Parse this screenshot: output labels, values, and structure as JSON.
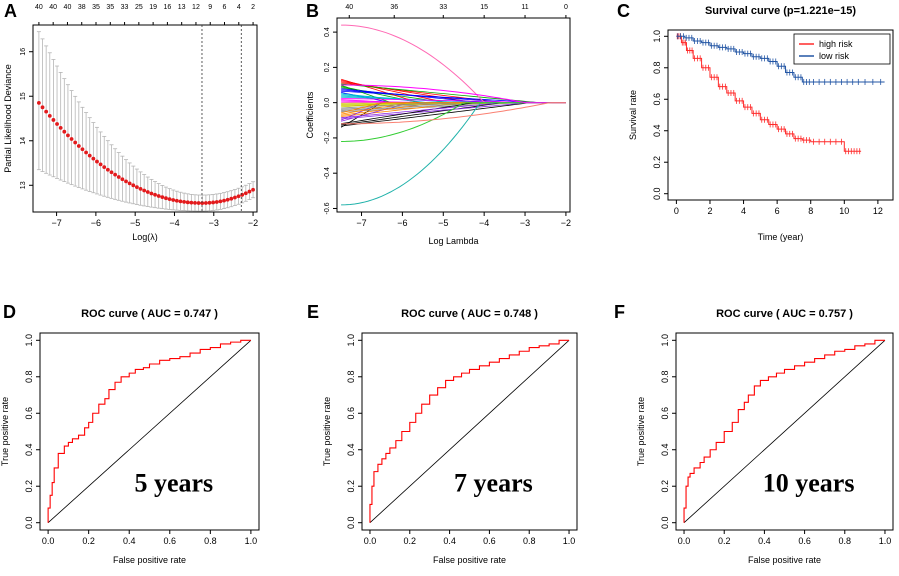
{
  "panels": {
    "A": {
      "label": "A"
    },
    "B": {
      "label": "B"
    },
    "C": {
      "label": "C"
    },
    "D": {
      "label": "D"
    },
    "E": {
      "label": "E"
    },
    "F": {
      "label": "F"
    }
  },
  "chart_data": [
    {
      "id": "A",
      "type": "scatter",
      "title": "",
      "xlabel": "Log(λ)",
      "ylabel": "Partial Likelihood Deviance",
      "xlim": [
        -7.6,
        -1.9
      ],
      "ylim": [
        12.4,
        16.6
      ],
      "x_ticks": [
        -7,
        -6,
        -5,
        -4,
        -3,
        -2
      ],
      "y_ticks": [
        13,
        14,
        15,
        16
      ],
      "top_tick_labels": [
        "40",
        "40",
        "40",
        "38",
        "35",
        "35",
        "33",
        "25",
        "19",
        "16",
        "13",
        "12",
        "9",
        "6",
        "4",
        "2"
      ],
      "vlines": [
        -3.3,
        -2.3
      ],
      "point_color": "#e31a1c",
      "curve": {
        "x_start": -7.45,
        "x_end": -2.0,
        "y_start": 14.85,
        "y_min": 12.6,
        "x_min": -3.3,
        "y_end": 12.9
      },
      "error_bar": {
        "upper_start": 16.45,
        "lower_start": 13.35,
        "upper_min": 12.78,
        "lower_min": 12.42
      }
    },
    {
      "id": "B",
      "type": "line",
      "title": "",
      "xlabel": "Log Lambda",
      "ylabel": "Coefficients",
      "xlim": [
        -7.6,
        -1.9
      ],
      "ylim": [
        -0.62,
        0.48
      ],
      "x_ticks": [
        -7,
        -6,
        -5,
        -4,
        -3,
        -2
      ],
      "y_ticks": [
        -0.6,
        -0.4,
        -0.2,
        0.0,
        0.2,
        0.4
      ],
      "y_tick_labels": [
        "-0.6",
        "-0.4",
        "-0.2",
        "0.0",
        "0.2",
        "0.4"
      ],
      "top_tick_labels": [
        "40",
        "36",
        "33",
        "15",
        "11",
        "0"
      ],
      "top_tick_positions": [
        -7.3,
        -6.2,
        -5.0,
        -4.0,
        -3.0,
        -2.0
      ],
      "series_count": 40,
      "highlighted_series": [
        {
          "name": "pink-high",
          "start": 0.44,
          "zero_at": -4.0,
          "color": "#ff69b4"
        },
        {
          "name": "cyan-low",
          "start": -0.58,
          "zero_at": -4.1,
          "color": "#20b2aa"
        },
        {
          "name": "green-mid",
          "start": -0.22,
          "zero_at": -4.5,
          "color": "#32cd32"
        },
        {
          "name": "magenta",
          "start": 0.1,
          "zero_at": -3.0,
          "color": "#ff00ff"
        },
        {
          "name": "salmon",
          "start": -0.12,
          "zero_at": -2.4,
          "color": "#fa8072"
        }
      ]
    },
    {
      "id": "C",
      "type": "line",
      "title": "Survival curve (p=1.221e−15)",
      "xlabel": "Time (year)",
      "ylabel": "Survival rate",
      "xlim": [
        -0.5,
        12.9
      ],
      "ylim": [
        -0.04,
        1.04
      ],
      "x_ticks": [
        0,
        2,
        4,
        6,
        8,
        10,
        12
      ],
      "y_ticks": [
        0.0,
        0.2,
        0.4,
        0.6,
        0.8,
        1.0
      ],
      "y_tick_labels": [
        "0.0",
        "0.2",
        "0.4",
        "0.6",
        "0.8",
        "1.0"
      ],
      "series": [
        {
          "name": "high risk",
          "color": "#ff2a2a",
          "x": [
            0,
            0.3,
            0.6,
            1.0,
            1.5,
            2.0,
            2.5,
            3.0,
            3.5,
            4.0,
            4.5,
            5.0,
            5.5,
            6.0,
            6.5,
            7.0,
            7.5,
            8.0,
            9.0,
            10.0,
            10.5,
            11.0
          ],
          "y": [
            1.0,
            0.96,
            0.91,
            0.86,
            0.8,
            0.74,
            0.68,
            0.64,
            0.59,
            0.55,
            0.51,
            0.47,
            0.44,
            0.41,
            0.38,
            0.35,
            0.34,
            0.33,
            0.33,
            0.27,
            0.27,
            0.27
          ]
        },
        {
          "name": "low risk",
          "color": "#2255a4",
          "x": [
            0,
            0.5,
            1.0,
            1.5,
            2.0,
            2.5,
            3.0,
            3.5,
            4.0,
            4.5,
            5.0,
            5.5,
            6.0,
            6.5,
            7.0,
            7.5,
            8.0,
            9.0,
            10.0,
            11.0,
            12.4
          ],
          "y": [
            1.0,
            0.99,
            0.97,
            0.96,
            0.94,
            0.93,
            0.92,
            0.9,
            0.89,
            0.87,
            0.86,
            0.84,
            0.81,
            0.77,
            0.74,
            0.71,
            0.71,
            0.71,
            0.71,
            0.71,
            0.71
          ]
        }
      ],
      "legend": "top-right"
    },
    {
      "id": "D",
      "type": "line",
      "title": "ROC curve ( AUC =  0.747 )",
      "xlabel": "False positive rate",
      "ylabel": "True positive rate",
      "annotation": "5 years",
      "xlim": [
        -0.04,
        1.04
      ],
      "ylim": [
        -0.04,
        1.04
      ],
      "x_ticks": [
        0.0,
        0.2,
        0.4,
        0.6,
        0.8,
        1.0
      ],
      "y_ticks": [
        0.0,
        0.2,
        0.4,
        0.6,
        0.8,
        1.0
      ],
      "tick_labels": [
        "0.0",
        "0.2",
        "0.4",
        "0.6",
        "0.8",
        "1.0"
      ],
      "color": "#ff0000",
      "x": [
        0,
        0.01,
        0.02,
        0.03,
        0.05,
        0.08,
        0.1,
        0.12,
        0.15,
        0.18,
        0.2,
        0.22,
        0.25,
        0.28,
        0.3,
        0.33,
        0.36,
        0.4,
        0.43,
        0.47,
        0.5,
        0.55,
        0.6,
        0.65,
        0.7,
        0.75,
        0.8,
        0.85,
        0.9,
        0.95,
        1.0
      ],
      "y": [
        0,
        0.08,
        0.15,
        0.22,
        0.3,
        0.38,
        0.42,
        0.44,
        0.46,
        0.48,
        0.52,
        0.55,
        0.6,
        0.65,
        0.68,
        0.73,
        0.77,
        0.8,
        0.82,
        0.84,
        0.85,
        0.87,
        0.89,
        0.9,
        0.91,
        0.93,
        0.95,
        0.96,
        0.98,
        0.99,
        1.0
      ]
    },
    {
      "id": "E",
      "type": "line",
      "title": "ROC curve ( AUC =  0.748 )",
      "xlabel": "False positive rate",
      "ylabel": "True positive rate",
      "annotation": "7 years",
      "xlim": [
        -0.04,
        1.04
      ],
      "ylim": [
        -0.04,
        1.04
      ],
      "x_ticks": [
        0.0,
        0.2,
        0.4,
        0.6,
        0.8,
        1.0
      ],
      "y_ticks": [
        0.0,
        0.2,
        0.4,
        0.6,
        0.8,
        1.0
      ],
      "tick_labels": [
        "0.0",
        "0.2",
        "0.4",
        "0.6",
        "0.8",
        "1.0"
      ],
      "color": "#ff0000",
      "x": [
        0,
        0.01,
        0.02,
        0.04,
        0.06,
        0.08,
        0.1,
        0.13,
        0.16,
        0.2,
        0.23,
        0.26,
        0.3,
        0.34,
        0.38,
        0.42,
        0.46,
        0.5,
        0.55,
        0.6,
        0.65,
        0.7,
        0.75,
        0.8,
        0.85,
        0.9,
        0.95,
        1.0
      ],
      "y": [
        0,
        0.1,
        0.2,
        0.28,
        0.32,
        0.35,
        0.38,
        0.41,
        0.45,
        0.5,
        0.55,
        0.6,
        0.65,
        0.7,
        0.74,
        0.78,
        0.8,
        0.82,
        0.84,
        0.86,
        0.88,
        0.9,
        0.92,
        0.94,
        0.96,
        0.97,
        0.98,
        1.0
      ]
    },
    {
      "id": "F",
      "type": "line",
      "title": "ROC curve ( AUC =  0.757 )",
      "xlabel": "False positive rate",
      "ylabel": "True positive rate",
      "annotation": "10 years",
      "xlim": [
        -0.04,
        1.04
      ],
      "ylim": [
        -0.04,
        1.04
      ],
      "x_ticks": [
        0.0,
        0.2,
        0.4,
        0.6,
        0.8,
        1.0
      ],
      "y_ticks": [
        0.0,
        0.2,
        0.4,
        0.6,
        0.8,
        1.0
      ],
      "tick_labels": [
        "0.0",
        "0.2",
        "0.4",
        "0.6",
        "0.8",
        "1.0"
      ],
      "color": "#ff0000",
      "x": [
        0,
        0.01,
        0.02,
        0.03,
        0.05,
        0.08,
        0.1,
        0.13,
        0.16,
        0.2,
        0.24,
        0.27,
        0.3,
        0.32,
        0.35,
        0.38,
        0.42,
        0.46,
        0.5,
        0.55,
        0.6,
        0.65,
        0.7,
        0.75,
        0.8,
        0.85,
        0.9,
        0.95,
        1.0
      ],
      "y": [
        0,
        0.08,
        0.2,
        0.25,
        0.27,
        0.3,
        0.33,
        0.36,
        0.4,
        0.44,
        0.5,
        0.55,
        0.62,
        0.66,
        0.7,
        0.75,
        0.78,
        0.8,
        0.82,
        0.84,
        0.86,
        0.88,
        0.9,
        0.92,
        0.94,
        0.95,
        0.97,
        0.98,
        1.0
      ]
    }
  ]
}
